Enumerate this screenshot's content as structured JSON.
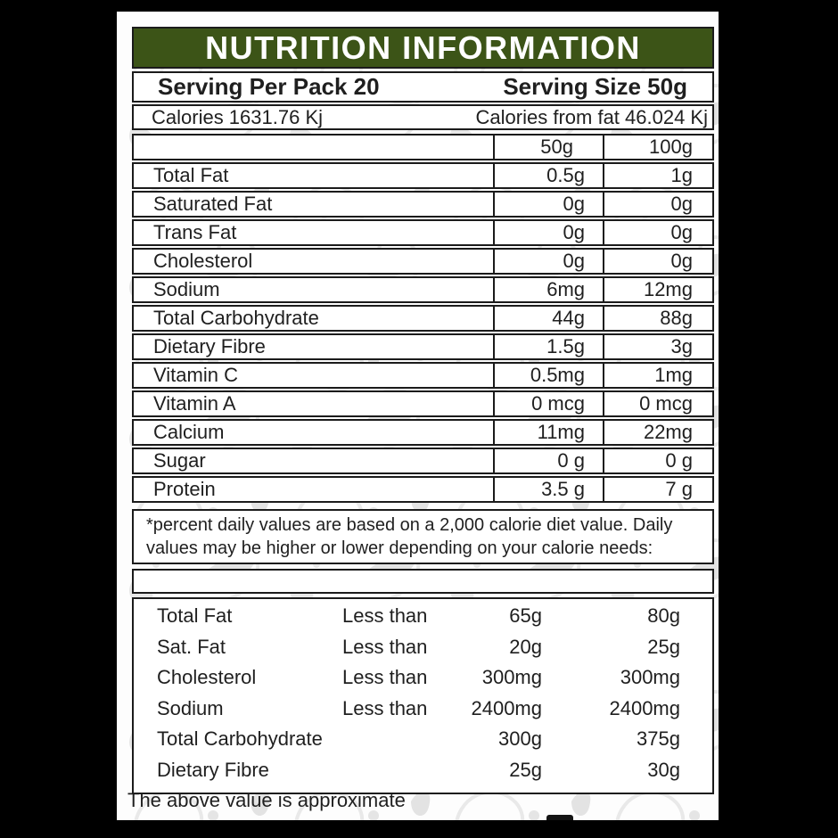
{
  "colors": {
    "header_bg": "#3c5417",
    "header_text": "#ffffff",
    "border": "#1b1b1b",
    "frame": "#000000",
    "pattern": "#e8e8e8"
  },
  "label": {
    "title": "NUTRITION INFORMATION",
    "serving_per_pack": "Serving Per Pack 20",
    "serving_size": "Serving Size 50g",
    "calories": "Calories 1631.76 Kj",
    "calories_from_fat": "Calories from fat 46.024 Kj",
    "columns": [
      "50g",
      "100g"
    ],
    "nutrients": [
      {
        "name": "Total Fat",
        "v50": "0.5g",
        "v100": "1g"
      },
      {
        "name": "Saturated Fat",
        "v50": "0g",
        "v100": "0g"
      },
      {
        "name": "Trans Fat",
        "v50": "0g",
        "v100": "0g"
      },
      {
        "name": "Cholesterol",
        "v50": "0g",
        "v100": "0g"
      },
      {
        "name": "Sodium",
        "v50": "6mg",
        "v100": "12mg"
      },
      {
        "name": "Total Carbohydrate",
        "v50": "44g",
        "v100": "88g"
      },
      {
        "name": "Dietary Fibre",
        "v50": "1.5g",
        "v100": "3g"
      },
      {
        "name": "Vitamin C",
        "v50": "0.5mg",
        "v100": "1mg"
      },
      {
        "name": "Vitamin A",
        "v50": "0 mcg",
        "v100": "0 mcg"
      },
      {
        "name": "Calcium",
        "v50": "11mg",
        "v100": "22mg"
      },
      {
        "name": "Sugar",
        "v50": "0 g",
        "v100": "0 g"
      },
      {
        "name": "Protein",
        "v50": "3.5 g",
        "v100": "7 g"
      }
    ],
    "footnote_lines": [
      "*percent daily values are based on a 2,000 calorie diet value. Daily",
      "values may be higher or lower depending on your calorie needs:"
    ],
    "daily_values": [
      {
        "name": "Total Fat",
        "qualifier": "Less than",
        "v1": "65g",
        "v2": "80g"
      },
      {
        "name": "Sat. Fat",
        "qualifier": "Less than",
        "v1": "20g",
        "v2": "25g"
      },
      {
        "name": "Cholesterol",
        "qualifier": "Less than",
        "v1": "300mg",
        "v2": "300mg"
      },
      {
        "name": "Sodium",
        "qualifier": "Less than",
        "v1": "2400mg",
        "v2": "2400mg"
      },
      {
        "name": "Total Carbohydrate",
        "qualifier": "",
        "v1": "300g",
        "v2": "375g"
      },
      {
        "name": "Dietary Fibre",
        "qualifier": "",
        "v1": "25g",
        "v2": "30g"
      }
    ],
    "disclaimer": "The above value is approximate"
  }
}
